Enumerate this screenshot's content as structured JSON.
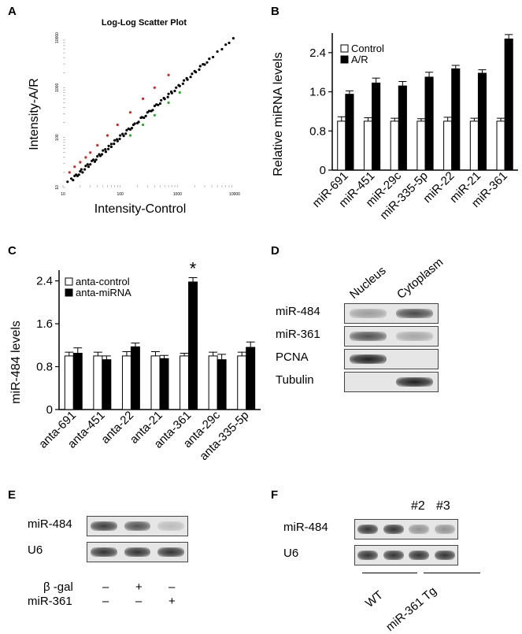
{
  "panels": {
    "A": {
      "letter": "A"
    },
    "B": {
      "letter": "B"
    },
    "C": {
      "letter": "C"
    },
    "D": {
      "letter": "D"
    },
    "E": {
      "letter": "E"
    },
    "F": {
      "letter": "F"
    }
  },
  "chart_data": [
    {
      "id": "A",
      "type": "scatter",
      "title": "Log-Log Scatter Plot",
      "xlabel": "Intensity-Control",
      "ylabel": "Intensity-A/R",
      "xscale": "log",
      "yscale": "log",
      "xlim": [
        10,
        10000
      ],
      "ylim": [
        10,
        10000
      ],
      "xticks": [
        "10",
        "100",
        "1000",
        "10000"
      ],
      "yticks": [
        "10",
        "100",
        "1000",
        "10000"
      ],
      "point_colors": {
        "unchanged": "#000000",
        "up": "#e02020",
        "down": "#20b020"
      },
      "series": [
        {
          "group": "unchanged",
          "x": [
            12,
            14,
            16,
            18,
            20,
            22,
            25,
            28,
            32,
            36,
            40,
            45,
            50,
            56,
            63,
            70,
            80,
            90,
            100,
            115,
            130,
            150,
            170,
            200,
            230,
            260,
            300,
            350,
            400,
            460,
            520,
            600,
            700,
            800,
            950,
            1100,
            1300,
            1500,
            1800,
            2100,
            2500,
            3000,
            3600,
            4200,
            5000,
            6000,
            7000,
            8000,
            9500,
            15,
            17,
            19,
            21,
            24,
            27,
            30,
            34,
            38,
            43,
            48,
            55,
            62,
            70,
            78,
            88,
            98,
            110,
            125,
            140,
            160,
            180,
            210,
            240,
            280,
            320,
            370,
            430,
            500,
            580,
            680,
            780,
            900,
            1050,
            1250,
            1450,
            1700,
            2000,
            2400,
            2800,
            3300
          ],
          "y": [
            13,
            15,
            17,
            17,
            21,
            20,
            27,
            26,
            34,
            33,
            42,
            43,
            55,
            52,
            68,
            65,
            88,
            85,
            110,
            108,
            140,
            145,
            180,
            195,
            250,
            250,
            320,
            340,
            430,
            450,
            560,
            590,
            750,
            780,
            1000,
            1080,
            1400,
            1450,
            1900,
            2050,
            2700,
            2900,
            3800,
            4100,
            5300,
            5900,
            7300,
            7900,
            9800,
            14,
            18,
            18,
            23,
            23,
            29,
            29,
            36,
            36,
            46,
            46,
            58,
            59,
            74,
            75,
            92,
            94,
            118,
            120,
            150,
            155,
            190,
            205,
            255,
            270,
            340,
            355,
            460,
            480,
            620,
            650,
            830,
            860,
            1120,
            1200,
            1550,
            1640,
            2150,
            2300,
            2950,
            3200
          ]
        },
        {
          "group": "up",
          "x": [
            13,
            16,
            20,
            25,
            30,
            40,
            60,
            90,
            150,
            250,
            400,
            700
          ],
          "y": [
            20,
            26,
            32,
            40,
            50,
            70,
            110,
            180,
            320,
            600,
            1000,
            1800
          ]
        },
        {
          "group": "down",
          "x": [
            150,
            250,
            400,
            700,
            1100
          ],
          "y": [
            110,
            180,
            280,
            500,
            800
          ]
        }
      ]
    },
    {
      "id": "B",
      "type": "bar",
      "ylabel": "Relative miRNA levels",
      "ylim": [
        0,
        2.8
      ],
      "yticks": [
        "0",
        "0.8",
        "1.6",
        "2.4"
      ],
      "categories": [
        "miR-691",
        "miR-451",
        "miR-29c",
        "miR-335-5p",
        "miR-22",
        "miR-21",
        "miR-361"
      ],
      "series": [
        {
          "name": "Control",
          "color": "#ffffff",
          "values": [
            1.0,
            1.0,
            1.0,
            1.0,
            1.0,
            1.0,
            1.0
          ],
          "errors": [
            0.09,
            0.07,
            0.06,
            0.05,
            0.08,
            0.06,
            0.06
          ]
        },
        {
          "name": "A/R",
          "color": "#000000",
          "values": [
            1.55,
            1.78,
            1.72,
            1.9,
            2.07,
            1.98,
            2.68
          ],
          "errors": [
            0.07,
            0.1,
            0.09,
            0.1,
            0.07,
            0.07,
            0.09
          ]
        }
      ],
      "legend": "top-left"
    },
    {
      "id": "C",
      "type": "bar",
      "ylabel": "miR-484 levels",
      "ylim": [
        0,
        2.6
      ],
      "yticks": [
        "0",
        "0.8",
        "1.6",
        "2.4"
      ],
      "categories": [
        "anta-691",
        "anta-451",
        "anta-22",
        "anta-21",
        "anta-361",
        "anta-29c",
        "anta-335-5p"
      ],
      "series": [
        {
          "name": "anta-control",
          "color": "#ffffff",
          "values": [
            1.0,
            1.0,
            1.0,
            1.0,
            1.0,
            1.0,
            1.0
          ],
          "errors": [
            0.07,
            0.07,
            0.08,
            0.08,
            0.05,
            0.07,
            0.07
          ]
        },
        {
          "name": "anta-miRNA",
          "color": "#000000",
          "values": [
            1.05,
            0.93,
            1.17,
            0.95,
            2.38,
            0.93,
            1.16
          ],
          "errors": [
            0.1,
            0.07,
            0.07,
            0.06,
            0.08,
            0.1,
            0.1
          ]
        }
      ],
      "significance": {
        "category_index": 4,
        "symbol": "*"
      },
      "legend": "top-left"
    }
  ],
  "blot_D": {
    "columns": [
      "Nucleus",
      "Cytoplasm"
    ],
    "rows": [
      {
        "label": "miR-484",
        "bands": [
          0.35,
          0.75
        ]
      },
      {
        "label": "miR-361",
        "bands": [
          0.7,
          0.3
        ]
      },
      {
        "label": "PCNA",
        "bands": [
          0.95,
          0.0
        ]
      },
      {
        "label": "Tubulin",
        "bands": [
          0.0,
          0.95
        ]
      }
    ]
  },
  "blot_E": {
    "rows": [
      {
        "label": "miR-484",
        "bands": [
          0.8,
          0.7,
          0.2
        ]
      },
      {
        "label": "U6",
        "bands": [
          0.85,
          0.85,
          0.85
        ]
      }
    ],
    "conditions": [
      {
        "label": "β -gal",
        "marks": [
          "–",
          "+",
          "–"
        ]
      },
      {
        "label": "miR-361",
        "marks": [
          "–",
          "–",
          "+"
        ]
      }
    ]
  },
  "blot_F": {
    "sample_tags": [
      "",
      "",
      "#2",
      "#3"
    ],
    "rows": [
      {
        "label": "miR-484",
        "bands": [
          0.85,
          0.85,
          0.4,
          0.4
        ]
      },
      {
        "label": "U6",
        "bands": [
          0.85,
          0.85,
          0.85,
          0.85
        ]
      }
    ],
    "groups": [
      "WT",
      "miR-361 Tg"
    ]
  }
}
